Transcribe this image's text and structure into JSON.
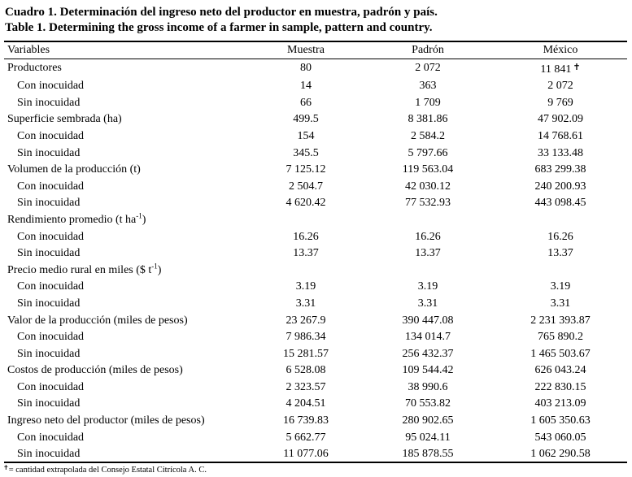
{
  "title_es": "Cuadro 1. Determinación del ingreso neto del productor en muestra, padrón y país.",
  "title_en": "Table 1. Determining the gross income of a farmer in sample, pattern and country.",
  "columns": [
    "Variables",
    "Muestra",
    "Padrón",
    "México"
  ],
  "rows": [
    {
      "label": "Productores",
      "sub": false,
      "values": [
        "80",
        "2 072",
        "11 841"
      ],
      "mark": "✝"
    },
    {
      "label": "Con inocuidad",
      "sub": true,
      "values": [
        "14",
        "363",
        "2 072"
      ]
    },
    {
      "label": "Sin inocuidad",
      "sub": true,
      "values": [
        "66",
        "1 709",
        "9 769"
      ]
    },
    {
      "label": "Superficie sembrada (ha)",
      "sub": false,
      "values": [
        "499.5",
        "8 381.86",
        "47 902.09"
      ]
    },
    {
      "label": "Con inocuidad",
      "sub": true,
      "values": [
        "154",
        "2 584.2",
        "14 768.61"
      ]
    },
    {
      "label": "Sin inocuidad",
      "sub": true,
      "values": [
        "345.5",
        "5 797.66",
        "33 133.48"
      ]
    },
    {
      "label": "Volumen de la producción (t)",
      "sub": false,
      "values": [
        "7 125.12",
        "119 563.04",
        "683 299.38"
      ]
    },
    {
      "label": "Con inocuidad",
      "sub": true,
      "values": [
        "2 504.7",
        "42 030.12",
        "240 200.93"
      ]
    },
    {
      "label": "Sin inocuidad",
      "sub": true,
      "values": [
        "4 620.42",
        "77 532.93",
        "443 098.45"
      ]
    },
    {
      "label": "Rendimiento promedio (t ha",
      "sup": "-1",
      "suffix": ")",
      "sub": false,
      "values": [
        "",
        "",
        ""
      ]
    },
    {
      "label": "Con inocuidad",
      "sub": true,
      "values": [
        "16.26",
        "16.26",
        "16.26"
      ]
    },
    {
      "label": "Sin inocuidad",
      "sub": true,
      "values": [
        "13.37",
        "13.37",
        "13.37"
      ]
    },
    {
      "label": "Precio medio rural en miles ($ t",
      "sup": "-1",
      "suffix": ")",
      "sub": false,
      "values": [
        "",
        "",
        ""
      ]
    },
    {
      "label": "Con inocuidad",
      "sub": true,
      "values": [
        "3.19",
        "3.19",
        "3.19"
      ]
    },
    {
      "label": "Sin inocuidad",
      "sub": true,
      "values": [
        "3.31",
        "3.31",
        "3.31"
      ]
    },
    {
      "label": "Valor de la producción (miles de pesos)",
      "sub": false,
      "values": [
        "23 267.9",
        "390 447.08",
        "2 231 393.87"
      ]
    },
    {
      "label": "Con inocuidad",
      "sub": true,
      "values": [
        "7 986.34",
        "134 014.7",
        "765 890.2"
      ]
    },
    {
      "label": "Sin inocuidad",
      "sub": true,
      "values": [
        "15 281.57",
        "256 432.37",
        "1 465 503.67"
      ]
    },
    {
      "label": "Costos de producción (miles de pesos)",
      "sub": false,
      "values": [
        "6 528.08",
        "109 544.42",
        "626 043.24"
      ]
    },
    {
      "label": "Con inocuidad",
      "sub": true,
      "values": [
        "2 323.57",
        "38 990.6",
        "222 830.15"
      ]
    },
    {
      "label": "Sin inocuidad",
      "sub": true,
      "values": [
        "4 204.51",
        "70 553.82",
        "403 213.09"
      ]
    },
    {
      "label": "Ingreso neto del productor (miles de pesos)",
      "sub": false,
      "values": [
        "16 739.83",
        "280 902.65",
        "1 605 350.63"
      ]
    },
    {
      "label": "Con inocuidad",
      "sub": true,
      "values": [
        "5 662.77",
        "95 024.11",
        "543 060.05"
      ]
    },
    {
      "label": "Sin inocuidad",
      "sub": true,
      "values": [
        "11 077.06",
        "185 878.55",
        "1 062 290.58"
      ]
    }
  ],
  "footnote": {
    "symbol": "✝",
    "text": "= cantidad extrapolada del Consejo Estatal Citrícola A. C."
  }
}
